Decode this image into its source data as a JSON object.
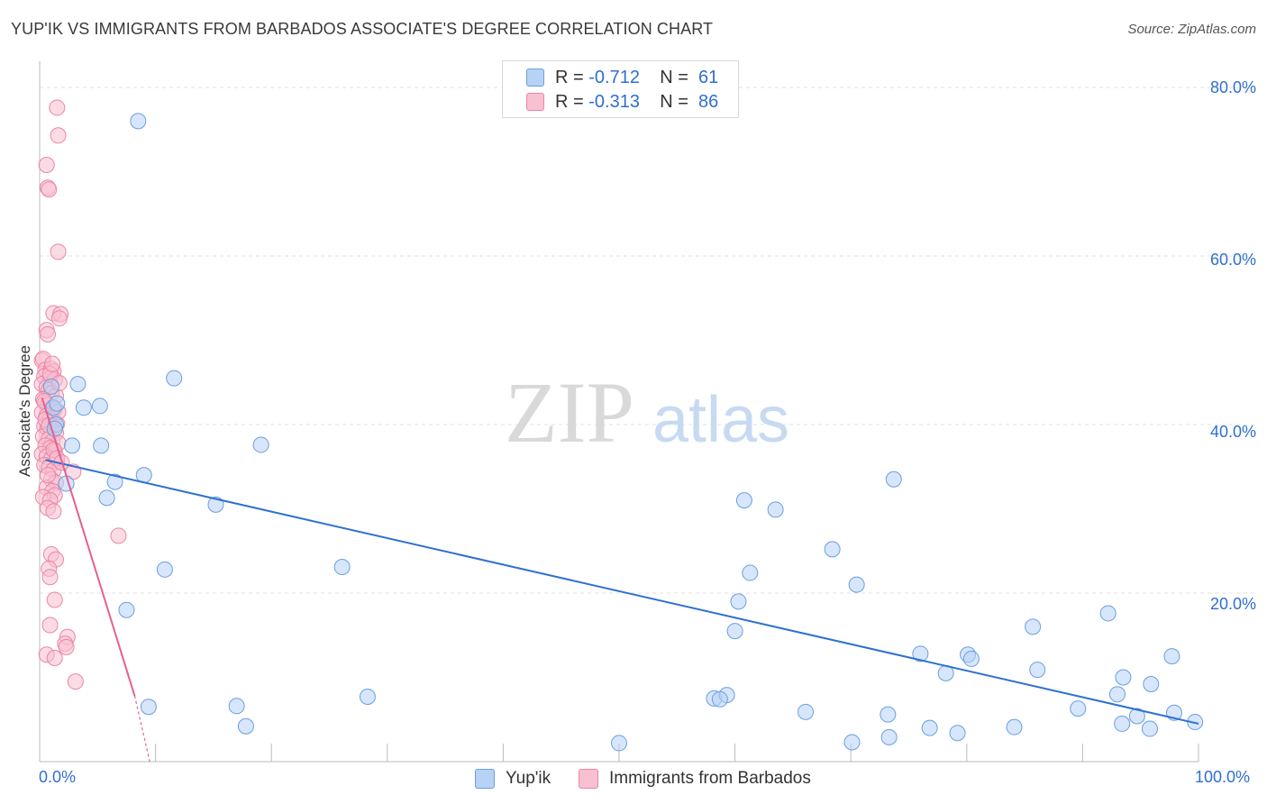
{
  "header": {
    "title": "YUP'IK VS IMMIGRANTS FROM BARBADOS ASSOCIATE'S DEGREE CORRELATION CHART",
    "source": "Source: ZipAtlas.com"
  },
  "watermark": {
    "zip": "ZIP",
    "atlas": "atlas"
  },
  "legend_top": [
    {
      "r_label": "R =",
      "r_value": "-0.712",
      "n_label": "N =",
      "n_value": "61"
    },
    {
      "r_label": "R =",
      "r_value": "-0.313",
      "n_label": "N =",
      "n_value": "86"
    }
  ],
  "colors": {
    "blue_fill": "#b7d2f5",
    "blue_stroke": "#6a9fe0",
    "blue_line": "#2e70d0",
    "pink_fill": "#f8c0d0",
    "pink_stroke": "#ec85a6",
    "pink_line": "#e5608c",
    "accent_text": "#2f6fd0",
    "grid": "#e2e2e2"
  },
  "chart_data": {
    "type": "scatter",
    "title": "YUP'IK VS IMMIGRANTS FROM BARBADOS ASSOCIATE'S DEGREE CORRELATION CHART",
    "xlabel": "",
    "ylabel": "Associate's Degree",
    "xlim": [
      0,
      100
    ],
    "ylim": [
      0,
      82
    ],
    "x_tick_labels": [
      "0.0%",
      "100.0%"
    ],
    "y_tick_labels": [
      "20.0%",
      "40.0%",
      "60.0%",
      "80.0%"
    ],
    "y_ticks": [
      20,
      40,
      60,
      80
    ],
    "grid": true,
    "legend_placement": "bottom",
    "series": [
      {
        "name": "Yup'ik",
        "r": -0.712,
        "n": 61,
        "trend": {
          "x1": 0.5,
          "y1": 35.8,
          "x2": 100,
          "y2": 4.5
        },
        "points": [
          [
            1.0,
            44.5
          ],
          [
            1.2,
            42.0
          ],
          [
            1.4,
            40.0
          ],
          [
            1.5,
            42.5
          ],
          [
            1.3,
            39.5
          ],
          [
            2.3,
            33.0
          ],
          [
            2.8,
            37.5
          ],
          [
            3.3,
            44.8
          ],
          [
            3.8,
            42.0
          ],
          [
            5.2,
            42.2
          ],
          [
            5.3,
            37.5
          ],
          [
            5.8,
            31.3
          ],
          [
            6.5,
            33.2
          ],
          [
            7.5,
            18.0
          ],
          [
            8.5,
            76.0
          ],
          [
            9.0,
            34.0
          ],
          [
            9.4,
            6.5
          ],
          [
            10.8,
            22.8
          ],
          [
            11.6,
            45.5
          ],
          [
            15.2,
            30.5
          ],
          [
            17.0,
            6.6
          ],
          [
            17.8,
            4.2
          ],
          [
            19.1,
            37.6
          ],
          [
            26.1,
            23.1
          ],
          [
            28.3,
            7.7
          ],
          [
            50.0,
            2.2
          ],
          [
            58.2,
            7.5
          ],
          [
            59.3,
            7.9
          ],
          [
            60.0,
            15.5
          ],
          [
            60.3,
            19.0
          ],
          [
            60.8,
            31.0
          ],
          [
            61.3,
            22.4
          ],
          [
            63.5,
            29.9
          ],
          [
            66.1,
            5.9
          ],
          [
            68.4,
            25.2
          ],
          [
            70.1,
            2.3
          ],
          [
            70.5,
            21.0
          ],
          [
            73.2,
            5.6
          ],
          [
            73.3,
            2.9
          ],
          [
            73.7,
            33.5
          ],
          [
            76.0,
            12.8
          ],
          [
            76.8,
            4.0
          ],
          [
            78.2,
            10.5
          ],
          [
            79.2,
            3.4
          ],
          [
            80.1,
            12.7
          ],
          [
            80.4,
            12.2
          ],
          [
            84.1,
            4.1
          ],
          [
            85.7,
            16.0
          ],
          [
            86.1,
            10.9
          ],
          [
            89.6,
            6.3
          ],
          [
            92.2,
            17.6
          ],
          [
            93.0,
            8.0
          ],
          [
            93.4,
            4.5
          ],
          [
            93.5,
            10.0
          ],
          [
            94.7,
            5.4
          ],
          [
            95.8,
            3.9
          ],
          [
            95.9,
            9.2
          ],
          [
            97.7,
            12.5
          ],
          [
            97.9,
            5.8
          ],
          [
            99.7,
            4.7
          ],
          [
            58.7,
            7.4
          ]
        ]
      },
      {
        "name": "Immigrants from Barbados",
        "r": -0.313,
        "n": 86,
        "trend": {
          "x1": 0.2,
          "y1": 43.2,
          "x2": 8.2,
          "y2": 7.8,
          "dash_x2": 9.5,
          "dash_y2": 0.0
        },
        "points": [
          [
            1.5,
            77.6
          ],
          [
            1.6,
            74.3
          ],
          [
            0.6,
            70.8
          ],
          [
            0.7,
            68.1
          ],
          [
            0.8,
            67.9
          ],
          [
            1.6,
            60.5
          ],
          [
            1.2,
            53.2
          ],
          [
            1.8,
            53.1
          ],
          [
            1.7,
            52.6
          ],
          [
            0.6,
            51.2
          ],
          [
            0.7,
            50.7
          ],
          [
            0.2,
            47.6
          ],
          [
            0.3,
            47.8
          ],
          [
            0.5,
            46.5
          ],
          [
            1.0,
            46.6
          ],
          [
            1.2,
            46.3
          ],
          [
            0.4,
            45.7
          ],
          [
            0.9,
            45.5
          ],
          [
            1.3,
            45.3
          ],
          [
            0.2,
            44.8
          ],
          [
            0.6,
            44.4
          ],
          [
            0.8,
            44.1
          ],
          [
            1.0,
            43.7
          ],
          [
            1.4,
            43.4
          ],
          [
            0.3,
            43.0
          ],
          [
            0.5,
            42.6
          ],
          [
            0.7,
            42.3
          ],
          [
            1.1,
            42.0
          ],
          [
            1.3,
            41.8
          ],
          [
            0.2,
            41.4
          ],
          [
            0.6,
            41.0
          ],
          [
            0.9,
            40.7
          ],
          [
            1.2,
            40.4
          ],
          [
            1.5,
            40.1
          ],
          [
            0.4,
            39.8
          ],
          [
            0.7,
            39.5
          ],
          [
            1.0,
            39.2
          ],
          [
            1.4,
            39.0
          ],
          [
            0.3,
            38.6
          ],
          [
            0.8,
            38.3
          ],
          [
            1.1,
            38.0
          ],
          [
            1.6,
            37.8
          ],
          [
            0.5,
            37.5
          ],
          [
            0.9,
            37.2
          ],
          [
            1.3,
            36.8
          ],
          [
            0.2,
            36.5
          ],
          [
            0.6,
            36.2
          ],
          [
            1.0,
            35.9
          ],
          [
            1.5,
            35.6
          ],
          [
            0.4,
            35.2
          ],
          [
            0.8,
            34.9
          ],
          [
            1.2,
            34.6
          ],
          [
            2.9,
            34.4
          ],
          [
            1.0,
            33.5
          ],
          [
            1.4,
            33.1
          ],
          [
            0.6,
            32.5
          ],
          [
            1.1,
            32.1
          ],
          [
            1.3,
            31.6
          ],
          [
            0.3,
            31.4
          ],
          [
            0.9,
            31.0
          ],
          [
            0.7,
            30.1
          ],
          [
            1.2,
            29.7
          ],
          [
            6.8,
            26.8
          ],
          [
            1.0,
            24.6
          ],
          [
            1.4,
            24.0
          ],
          [
            0.8,
            22.9
          ],
          [
            0.9,
            21.9
          ],
          [
            1.3,
            19.2
          ],
          [
            0.9,
            16.2
          ],
          [
            2.4,
            14.8
          ],
          [
            2.2,
            14.0
          ],
          [
            2.3,
            13.6
          ],
          [
            0.6,
            12.7
          ],
          [
            1.3,
            12.3
          ],
          [
            3.1,
            9.5
          ],
          [
            0.5,
            40.6
          ],
          [
            0.9,
            46.0
          ],
          [
            1.7,
            44.9
          ],
          [
            1.1,
            47.2
          ],
          [
            0.4,
            42.8
          ],
          [
            1.6,
            41.5
          ],
          [
            0.8,
            39.9
          ],
          [
            1.2,
            37.0
          ],
          [
            1.5,
            36.0
          ],
          [
            0.7,
            34.0
          ],
          [
            1.9,
            35.5
          ]
        ]
      }
    ]
  },
  "legend_bottom": [
    {
      "label": "Yup'ik"
    },
    {
      "label": "Immigrants from Barbados"
    }
  ]
}
